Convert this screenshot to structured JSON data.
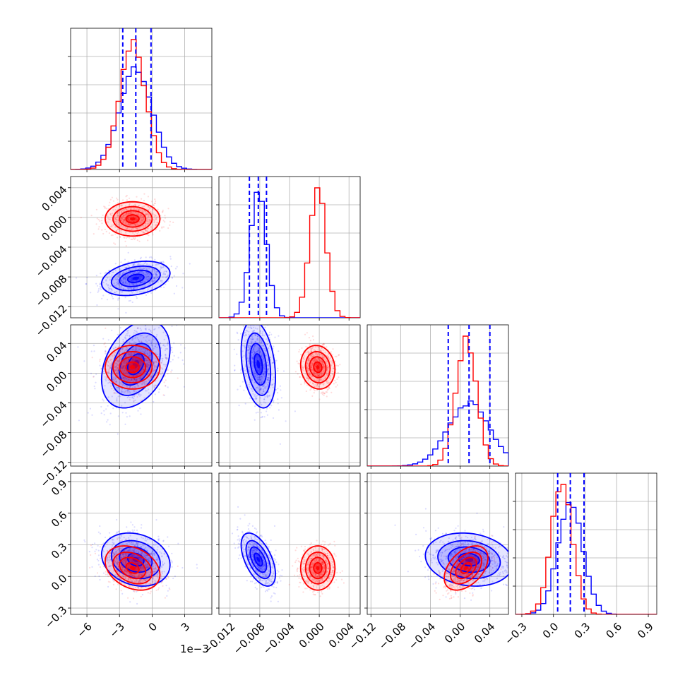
{
  "figure": {
    "type": "corner_plot",
    "x_offset_label": "1e−3",
    "colors": {
      "series_a": "#0000ff",
      "series_b": "#ff0000",
      "grid": "#b0b0b0",
      "axes": "#000000"
    }
  },
  "chart_data": {
    "type": "corner",
    "series": [
      {
        "color": "#0000ff",
        "means": [
          -0.0015,
          -0.0082,
          0.012,
          0.16
        ],
        "sds": [
          0.0015,
          0.0011,
          0.028,
          0.12
        ],
        "correlations": {
          "0-1": 0.3,
          "0-2": 0.35,
          "0-3": -0.2,
          "1-2": -0.3,
          "1-3": -0.55,
          "2-3": -0.15
        },
        "quantile_lines": [
          [
            -0.0027,
            -0.0015,
            -0.0001
          ],
          [
            -0.0094,
            -0.0082,
            -0.0071
          ],
          [
            -0.016,
            0.012,
            0.04
          ],
          [
            0.04,
            0.16,
            0.29
          ]
        ]
      },
      {
        "color": "#ff0000",
        "means": [
          -0.0018,
          -0.0002,
          0.008,
          0.08
        ],
        "sds": [
          0.0012,
          0.0011,
          0.014,
          0.1
        ],
        "correlations": {
          "0-1": 0.0,
          "0-2": 0.0,
          "0-3": -0.3,
          "1-2": -0.1,
          "1-3": 0.0,
          "2-3": 0.45
        }
      }
    ],
    "axes": [
      {
        "range": [
          -0.0075,
          0.0055
        ],
        "ticks": [
          -0.006,
          -0.003,
          0.0,
          0.003
        ],
        "tick_labels": [
          "−6",
          "−3",
          "0",
          "3"
        ]
      },
      {
        "range": [
          -0.0135,
          0.0055
        ],
        "ticks": [
          -0.012,
          -0.008,
          -0.004,
          0.0,
          0.004
        ],
        "tick_labels": [
          "−0.012",
          "−0.008",
          "−0.004",
          "0.000",
          "0.004"
        ]
      },
      {
        "range": [
          -0.125,
          0.065
        ],
        "ticks": [
          -0.12,
          -0.08,
          -0.04,
          0.0,
          0.04
        ],
        "tick_labels": [
          "−0.12",
          "−0.08",
          "−0.04",
          "0.00",
          "0.04"
        ]
      },
      {
        "range": [
          -0.36,
          0.98
        ],
        "ticks": [
          -0.3,
          0.0,
          0.3,
          0.6,
          0.9
        ],
        "tick_labels": [
          "−0.3",
          "0.0",
          "0.3",
          "0.6",
          "0.9"
        ]
      }
    ],
    "grid": true
  }
}
